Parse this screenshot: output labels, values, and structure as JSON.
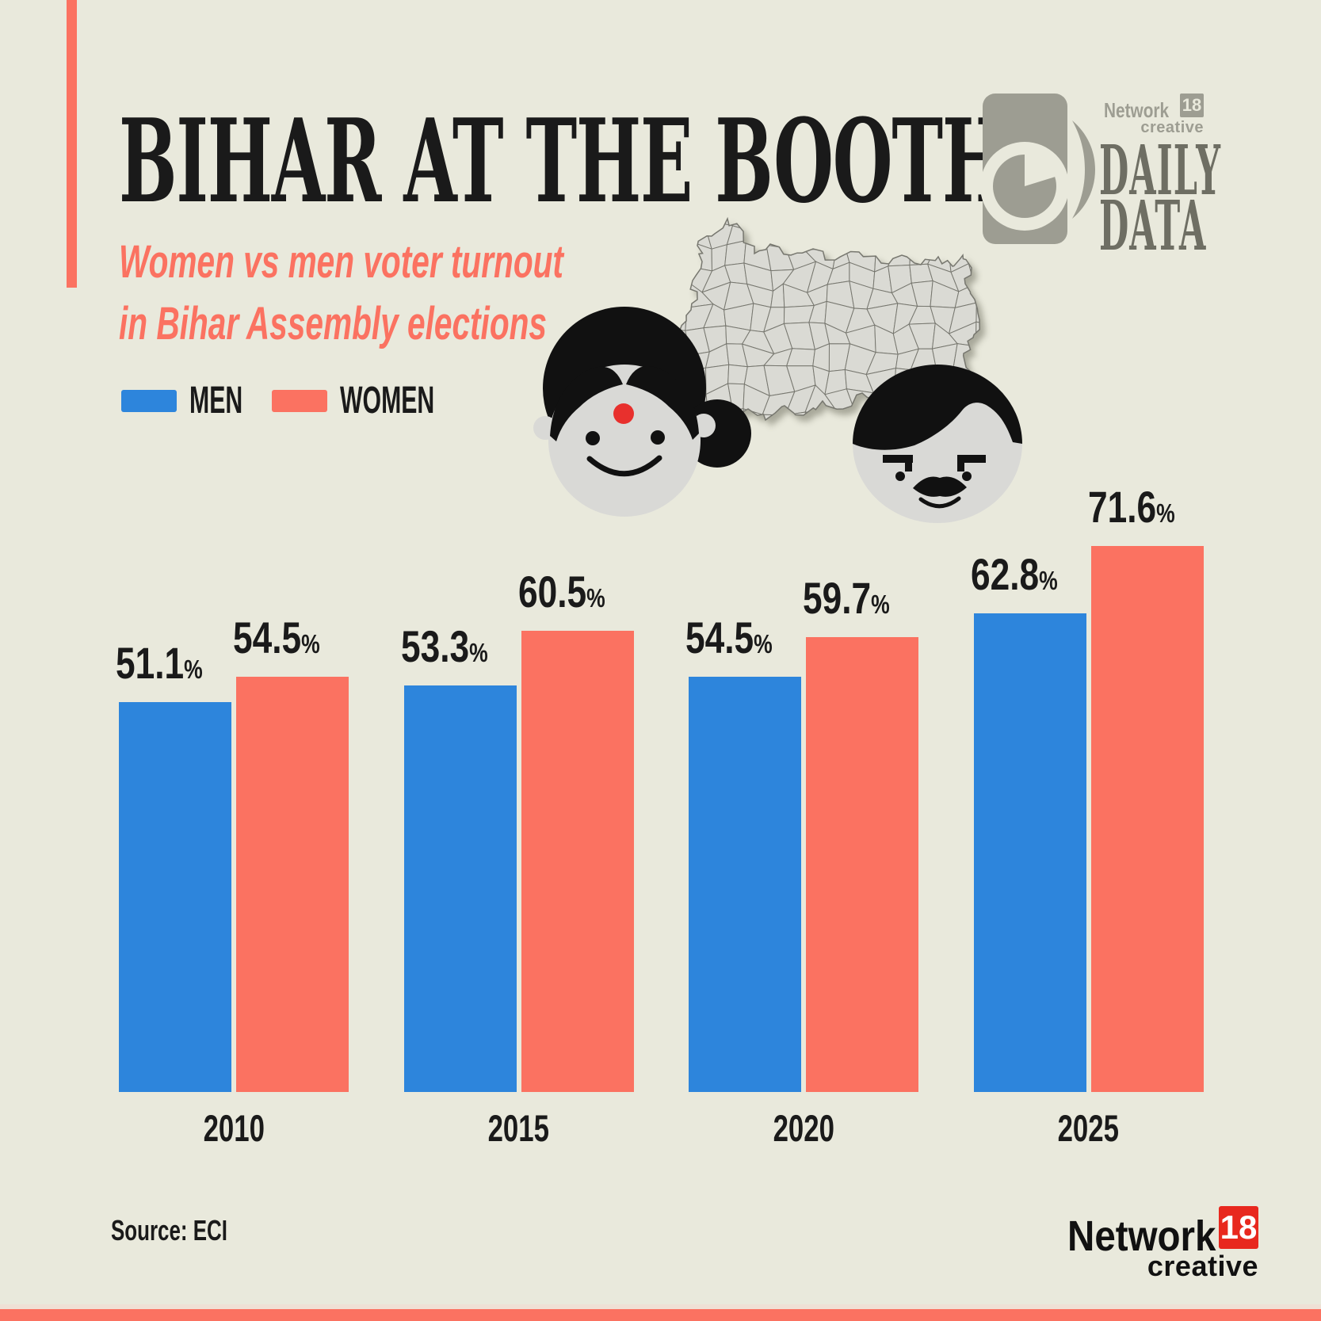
{
  "palette": {
    "background": "#e9e9dc",
    "coral": "#fb7261",
    "blue": "#2d85dc",
    "ink": "#1a1a1a",
    "map_fill": "#dadad4",
    "map_stroke": "#77776f",
    "logo_gray": "#9d9d92",
    "logo_dark_gray": "#6e6e63",
    "brand_red": "#e8281e",
    "skin_gray": "#d9d9d6",
    "hair_black": "#111111",
    "bindi_red": "#e8302d",
    "footer_pale": "#efe0d5"
  },
  "header": {
    "title": "BIHAR AT THE BOOTH",
    "subtitle_line1": "Women vs men voter turnout",
    "subtitle_line2": "in Bihar Assembly elections"
  },
  "brand_top": {
    "network": "Network",
    "eighteen": "18",
    "creative": "creative",
    "daily": "DAILY",
    "data": "DATA"
  },
  "legend": [
    {
      "label": "MEN",
      "color": "#2d85dc"
    },
    {
      "label": "WOMEN",
      "color": "#fb7261"
    }
  ],
  "chart_data": {
    "type": "bar",
    "categories": [
      "2010",
      "2015",
      "2020",
      "2025"
    ],
    "series": [
      {
        "name": "MEN",
        "color": "#2d85dc",
        "values": [
          51.1,
          53.3,
          54.5,
          62.8
        ]
      },
      {
        "name": "WOMEN",
        "color": "#fb7261",
        "values": [
          54.5,
          60.5,
          59.7,
          71.6
        ]
      }
    ],
    "value_suffix": "%",
    "title": "BIHAR AT THE BOOTH",
    "xlabel": "",
    "ylabel": "",
    "ylim": [
      0,
      80
    ],
    "grid": false,
    "legend_position": "top-left",
    "value_labels_shown": true
  },
  "footer": {
    "source": "Source: ECI",
    "brand": {
      "network": "Network",
      "eighteen": "18",
      "creative": "creative"
    }
  }
}
